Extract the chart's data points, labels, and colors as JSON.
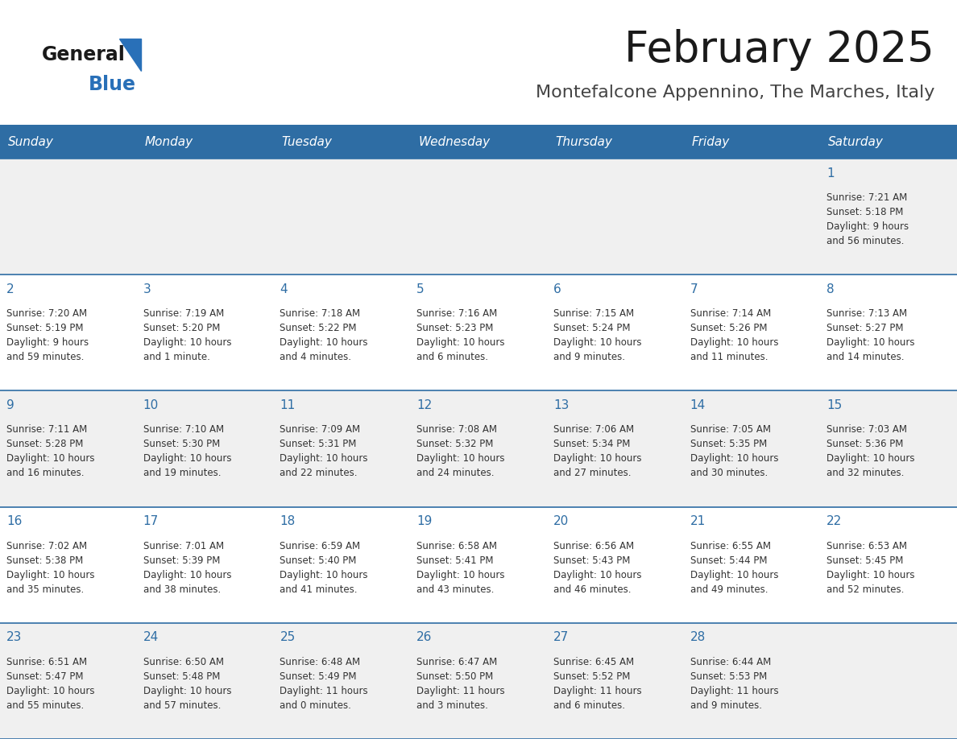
{
  "title": "February 2025",
  "subtitle": "Montefalcone Appennino, The Marches, Italy",
  "header_bg": "#2E6DA4",
  "header_text": "#FFFFFF",
  "cell_bg_odd": "#FFFFFF",
  "cell_bg_even": "#F0F0F0",
  "border_color": "#2E6DA4",
  "line_color": "#2E6DA4",
  "day_headers": [
    "Sunday",
    "Monday",
    "Tuesday",
    "Wednesday",
    "Thursday",
    "Friday",
    "Saturday"
  ],
  "title_color": "#1a1a1a",
  "subtitle_color": "#444444",
  "day_num_color": "#2E6DA4",
  "cell_text_color": "#333333",
  "logo_general_color": "#1a1a1a",
  "logo_blue_color": "#2970B8",
  "weeks": [
    [
      {
        "day": null,
        "info": ""
      },
      {
        "day": null,
        "info": ""
      },
      {
        "day": null,
        "info": ""
      },
      {
        "day": null,
        "info": ""
      },
      {
        "day": null,
        "info": ""
      },
      {
        "day": null,
        "info": ""
      },
      {
        "day": 1,
        "info": "Sunrise: 7:21 AM\nSunset: 5:18 PM\nDaylight: 9 hours\nand 56 minutes."
      }
    ],
    [
      {
        "day": 2,
        "info": "Sunrise: 7:20 AM\nSunset: 5:19 PM\nDaylight: 9 hours\nand 59 minutes."
      },
      {
        "day": 3,
        "info": "Sunrise: 7:19 AM\nSunset: 5:20 PM\nDaylight: 10 hours\nand 1 minute."
      },
      {
        "day": 4,
        "info": "Sunrise: 7:18 AM\nSunset: 5:22 PM\nDaylight: 10 hours\nand 4 minutes."
      },
      {
        "day": 5,
        "info": "Sunrise: 7:16 AM\nSunset: 5:23 PM\nDaylight: 10 hours\nand 6 minutes."
      },
      {
        "day": 6,
        "info": "Sunrise: 7:15 AM\nSunset: 5:24 PM\nDaylight: 10 hours\nand 9 minutes."
      },
      {
        "day": 7,
        "info": "Sunrise: 7:14 AM\nSunset: 5:26 PM\nDaylight: 10 hours\nand 11 minutes."
      },
      {
        "day": 8,
        "info": "Sunrise: 7:13 AM\nSunset: 5:27 PM\nDaylight: 10 hours\nand 14 minutes."
      }
    ],
    [
      {
        "day": 9,
        "info": "Sunrise: 7:11 AM\nSunset: 5:28 PM\nDaylight: 10 hours\nand 16 minutes."
      },
      {
        "day": 10,
        "info": "Sunrise: 7:10 AM\nSunset: 5:30 PM\nDaylight: 10 hours\nand 19 minutes."
      },
      {
        "day": 11,
        "info": "Sunrise: 7:09 AM\nSunset: 5:31 PM\nDaylight: 10 hours\nand 22 minutes."
      },
      {
        "day": 12,
        "info": "Sunrise: 7:08 AM\nSunset: 5:32 PM\nDaylight: 10 hours\nand 24 minutes."
      },
      {
        "day": 13,
        "info": "Sunrise: 7:06 AM\nSunset: 5:34 PM\nDaylight: 10 hours\nand 27 minutes."
      },
      {
        "day": 14,
        "info": "Sunrise: 7:05 AM\nSunset: 5:35 PM\nDaylight: 10 hours\nand 30 minutes."
      },
      {
        "day": 15,
        "info": "Sunrise: 7:03 AM\nSunset: 5:36 PM\nDaylight: 10 hours\nand 32 minutes."
      }
    ],
    [
      {
        "day": 16,
        "info": "Sunrise: 7:02 AM\nSunset: 5:38 PM\nDaylight: 10 hours\nand 35 minutes."
      },
      {
        "day": 17,
        "info": "Sunrise: 7:01 AM\nSunset: 5:39 PM\nDaylight: 10 hours\nand 38 minutes."
      },
      {
        "day": 18,
        "info": "Sunrise: 6:59 AM\nSunset: 5:40 PM\nDaylight: 10 hours\nand 41 minutes."
      },
      {
        "day": 19,
        "info": "Sunrise: 6:58 AM\nSunset: 5:41 PM\nDaylight: 10 hours\nand 43 minutes."
      },
      {
        "day": 20,
        "info": "Sunrise: 6:56 AM\nSunset: 5:43 PM\nDaylight: 10 hours\nand 46 minutes."
      },
      {
        "day": 21,
        "info": "Sunrise: 6:55 AM\nSunset: 5:44 PM\nDaylight: 10 hours\nand 49 minutes."
      },
      {
        "day": 22,
        "info": "Sunrise: 6:53 AM\nSunset: 5:45 PM\nDaylight: 10 hours\nand 52 minutes."
      }
    ],
    [
      {
        "day": 23,
        "info": "Sunrise: 6:51 AM\nSunset: 5:47 PM\nDaylight: 10 hours\nand 55 minutes."
      },
      {
        "day": 24,
        "info": "Sunrise: 6:50 AM\nSunset: 5:48 PM\nDaylight: 10 hours\nand 57 minutes."
      },
      {
        "day": 25,
        "info": "Sunrise: 6:48 AM\nSunset: 5:49 PM\nDaylight: 11 hours\nand 0 minutes."
      },
      {
        "day": 26,
        "info": "Sunrise: 6:47 AM\nSunset: 5:50 PM\nDaylight: 11 hours\nand 3 minutes."
      },
      {
        "day": 27,
        "info": "Sunrise: 6:45 AM\nSunset: 5:52 PM\nDaylight: 11 hours\nand 6 minutes."
      },
      {
        "day": 28,
        "info": "Sunrise: 6:44 AM\nSunset: 5:53 PM\nDaylight: 11 hours\nand 9 minutes."
      },
      {
        "day": null,
        "info": ""
      }
    ]
  ]
}
